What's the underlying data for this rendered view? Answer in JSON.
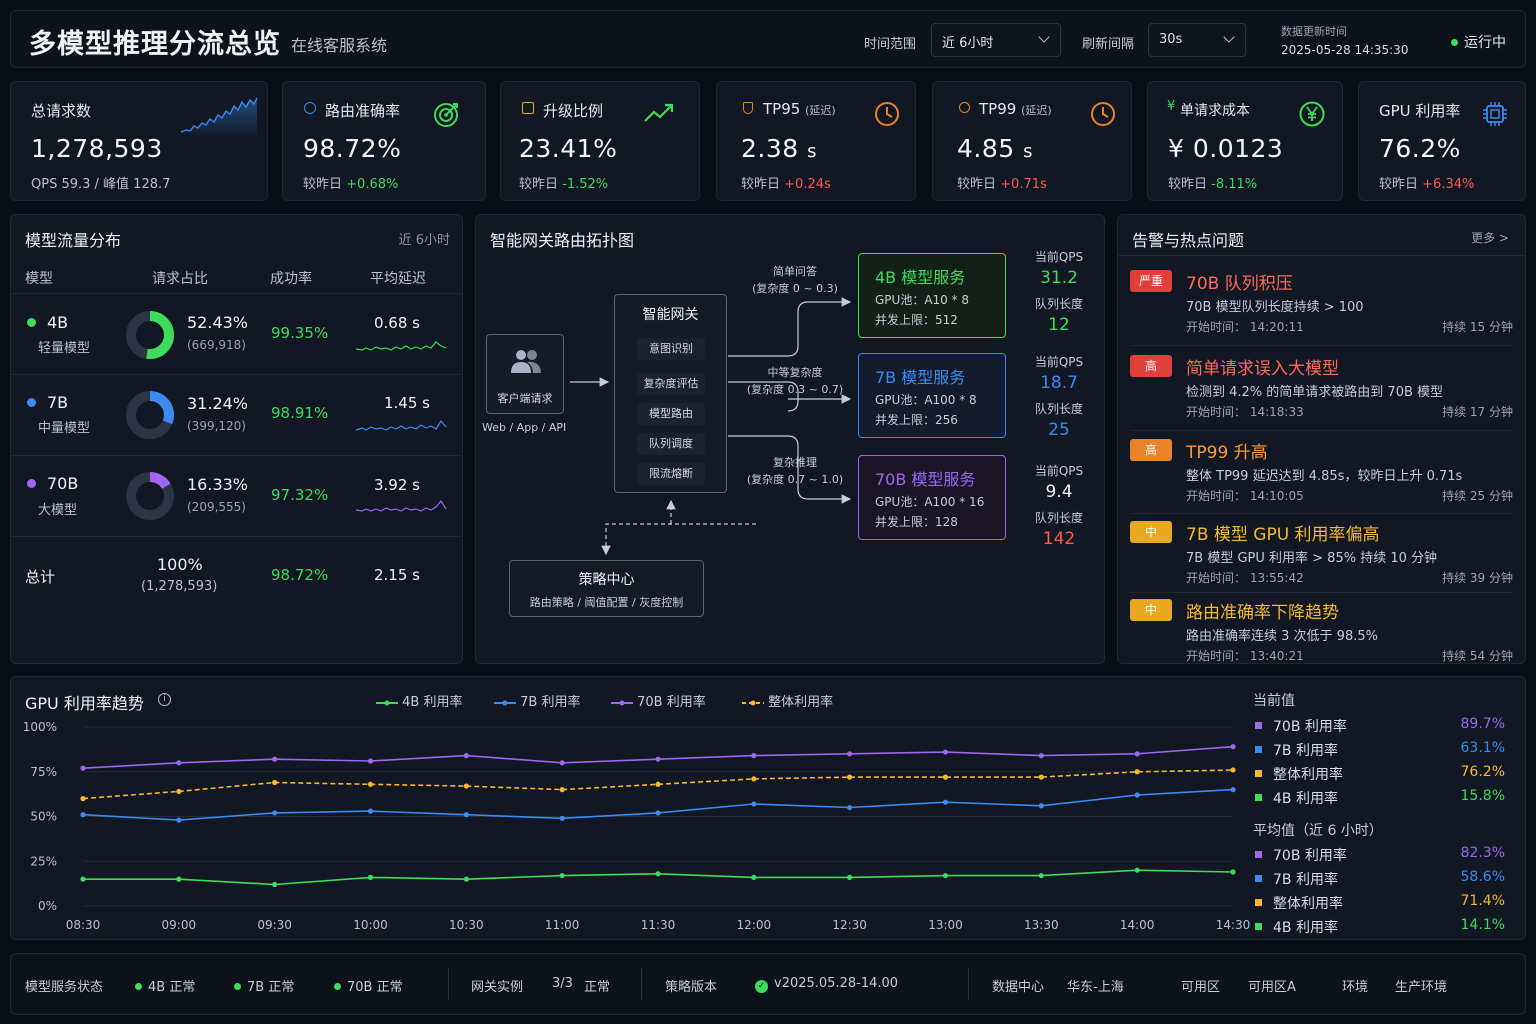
{
  "header": {
    "title": "多模型推理分流总览",
    "subtitle": "在线客服系统",
    "time_range_label": "时间范围",
    "time_range_value": "近 6小时",
    "refresh_label": "刷新间隔",
    "refresh_value": "30s",
    "update_label": "数据更新时间",
    "update_time": "2025-05-28 14:35:30",
    "status": "运行中",
    "status_color": "#3ddc5a"
  },
  "kpis": {
    "total": {
      "title": "总请求数",
      "value": "1,278,593",
      "sub": "QPS 59.3 / 峰值 128.7"
    },
    "accuracy": {
      "title": "路由准确率",
      "value": "98.72%",
      "cmp": "较昨日",
      "delta": "+0.68%",
      "icon": "target-icon"
    },
    "upgrade": {
      "title": "升级比例",
      "value": "23.41%",
      "cmp": "较昨日",
      "delta": "-1.52%",
      "icon": "trend-up-icon"
    },
    "tp95": {
      "title": "TP95",
      "tag": "(延迟)",
      "value": "2.38",
      "unit": "s",
      "cmp": "较昨日",
      "delta": "+0.24s",
      "icon": "clock-icon"
    },
    "tp99": {
      "title": "TP99",
      "tag": "(延迟)",
      "value": "4.85",
      "unit": "s",
      "cmp": "较昨日",
      "delta": "+0.71s",
      "icon": "clock-icon"
    },
    "cost": {
      "title": "单请求成本",
      "value": "¥ 0.0123",
      "cmp": "较昨日",
      "delta": "-8.11%",
      "icon": "yen-icon"
    },
    "gpu": {
      "title": "GPU 利用率",
      "value": "76.2%",
      "cmp": "较昨日",
      "delta": "+6.34%",
      "icon": "chip-icon"
    }
  },
  "traffic": {
    "title": "模型流量分布",
    "range": "近 6小时",
    "headers": [
      "模型",
      "请求占比",
      "成功率",
      "平均延迟"
    ],
    "rows": [
      {
        "name": "4B",
        "desc": "轻量模型",
        "color": "#3ddc5a",
        "share": "52.43%",
        "share_value": 52.43,
        "count": "(669,918)",
        "success": "99.35%",
        "latency": "0.68 s"
      },
      {
        "name": "7B",
        "desc": "中量模型",
        "color": "#3b8bf0",
        "share": "31.24%",
        "share_value": 31.24,
        "count": "(399,120)",
        "success": "98.91%",
        "latency": "1.45 s"
      },
      {
        "name": "70B",
        "desc": "大模型",
        "color": "#a066f0",
        "share": "16.33%",
        "share_value": 16.33,
        "count": "(209,555)",
        "success": "97.32%",
        "latency": "3.92 s"
      }
    ],
    "total": {
      "label": "总计",
      "share": "100%",
      "count": "(1,278,593)",
      "success": "98.72%",
      "latency": "2.15 s"
    }
  },
  "topology": {
    "title": "智能网关路由拓扑图",
    "client": {
      "label": "客户端请求",
      "sub": "Web / App / API"
    },
    "gateway": {
      "title": "智能网关",
      "items": [
        "意图识别",
        "复杂度评估",
        "模型路由",
        "队列调度",
        "限流熔断"
      ]
    },
    "strategy": {
      "title": "策略中心",
      "sub": "路由策略 / 阈值配置 / 灰度控制"
    },
    "routes": [
      {
        "label": "简单问答",
        "range": "(复杂度 0 ~ 0.3)"
      },
      {
        "label": "中等复杂度",
        "range": "(复杂度 0.3 ~ 0.7)"
      },
      {
        "label": "复杂推理",
        "range": "(复杂度 0.7 ~ 1.0)"
      }
    ],
    "services": [
      {
        "name": "4B 模型服务",
        "gpu": "GPU池：A10 * 8",
        "limit": "并发上限：512",
        "color": "#3ddc5a",
        "qps_label": "当前QPS",
        "qps": "31.2",
        "queue_label": "队列长度",
        "queue": "12"
      },
      {
        "name": "7B 模型服务",
        "gpu": "GPU池：A100 * 8",
        "limit": "并发上限：256",
        "color": "#3b8bf0",
        "qps_label": "当前QPS",
        "qps": "18.7",
        "queue_label": "队列长度",
        "queue": "25"
      },
      {
        "name": "70B 模型服务",
        "gpu": "GPU池：A100 * 16",
        "limit": "并发上限：128",
        "color": "#a066f0",
        "qps_label": "当前QPS",
        "qps": "9.4",
        "queue_label": "队列长度",
        "queue": "142"
      }
    ]
  },
  "alerts": {
    "title": "告警与热点问题",
    "more": "更多 >",
    "items": [
      {
        "level": "严重",
        "level_color": "#e0403a",
        "title": "70B 队列积压",
        "title_color": "#ff6a5a",
        "desc": "70B 模型队列长度持续 > 100",
        "time_label": "开始时间：",
        "time": "14:20:11",
        "duration": "持续 15 分钟"
      },
      {
        "level": "高",
        "level_color": "#e0403a",
        "title": "简单请求误入大模型",
        "title_color": "#ff6a5a",
        "desc": "检测到 4.2% 的简单请求被路由到 70B 模型",
        "time_label": "开始时间：",
        "time": "14:18:33",
        "duration": "持续 17 分钟"
      },
      {
        "level": "高",
        "level_color": "#e88a2a",
        "title": "TP99 升高",
        "title_color": "#ff9a3a",
        "desc": "整体 TP99 延迟达到 4.85s，较昨日上升 0.71s",
        "time_label": "开始时间：",
        "time": "14:10:05",
        "duration": "持续 25 分钟"
      },
      {
        "level": "中",
        "level_color": "#e8a820",
        "title": "7B 模型 GPU 利用率偏高",
        "title_color": "#f5b82e",
        "desc": "7B 模型 GPU 利用率 > 85% 持续 10 分钟",
        "time_label": "开始时间：",
        "time": "13:55:42",
        "duration": "持续 39 分钟"
      },
      {
        "level": "中",
        "level_color": "#e8a820",
        "title": "路由准确率下降趋势",
        "title_color": "#f5b82e",
        "desc": "路由准确率连续 3 次低于 98.5%",
        "time_label": "开始时间：",
        "time": "13:40:21",
        "duration": "持续 54 分钟"
      }
    ]
  },
  "gpu_panel": {
    "title": "GPU 利用率趋势",
    "current_title": "当前值",
    "current": [
      {
        "name": "70B 利用率",
        "value": "89.7%",
        "color": "#a066f0"
      },
      {
        "name": "7B 利用率",
        "value": "63.1%",
        "color": "#3b8bf0"
      },
      {
        "name": "整体利用率",
        "value": "76.2%",
        "color": "#f5b82e"
      },
      {
        "name": "4B 利用率",
        "value": "15.8%",
        "color": "#3ddc5a"
      }
    ],
    "avg_title": "平均值（近 6 小时）",
    "avg": [
      {
        "name": "70B 利用率",
        "value": "82.3%",
        "color": "#a066f0"
      },
      {
        "name": "7B 利用率",
        "value": "58.6%",
        "color": "#3b8bf0"
      },
      {
        "name": "整体利用率",
        "value": "71.4%",
        "color": "#f5b82e"
      },
      {
        "name": "4B 利用率",
        "value": "14.1%",
        "color": "#3ddc5a"
      }
    ]
  },
  "chart_data": {
    "type": "line",
    "title": "GPU 利用率趋势",
    "x": [
      "08:30",
      "09:00",
      "09:30",
      "10:00",
      "10:30",
      "11:00",
      "11:30",
      "12:00",
      "12:30",
      "13:00",
      "13:30",
      "14:00",
      "14:30"
    ],
    "yticks": [
      "100%",
      "75%",
      "50%",
      "25%",
      "0%"
    ],
    "ylim": [
      0,
      100
    ],
    "grid": true,
    "legend_position": "top",
    "series": [
      {
        "name": "4B 利用率",
        "color": "#3ddc5a",
        "values": [
          15,
          15,
          12,
          16,
          15,
          17,
          18,
          16,
          16,
          17,
          17,
          20,
          19
        ]
      },
      {
        "name": "7B 利用率",
        "color": "#3b8bf0",
        "values": [
          51,
          48,
          52,
          53,
          51,
          49,
          52,
          57,
          55,
          58,
          56,
          62,
          65
        ]
      },
      {
        "name": "70B 利用率",
        "color": "#a066f0",
        "values": [
          77,
          80,
          82,
          81,
          84,
          80,
          82,
          84,
          85,
          86,
          84,
          85,
          89
        ]
      },
      {
        "name": "整体利用率",
        "color": "#f5b82e",
        "values": [
          60,
          64,
          69,
          68,
          67,
          65,
          68,
          71,
          72,
          72,
          72,
          75,
          76
        ]
      }
    ]
  },
  "footer": {
    "service_label": "模型服务状态",
    "services": [
      "4B 正常",
      "7B 正常",
      "70B  正常"
    ],
    "gateway_label": "网关实例",
    "gateway_count": "3/3",
    "gateway_status": "正常",
    "policy_label": "策略版本",
    "policy_version": "v2025.05.28-14.00",
    "dc_label": "数据中心",
    "dc_value": "华东-上海",
    "zone_label": "可用区",
    "zone_value": "可用区A",
    "env_label": "环境",
    "env_value": "生产环境"
  }
}
